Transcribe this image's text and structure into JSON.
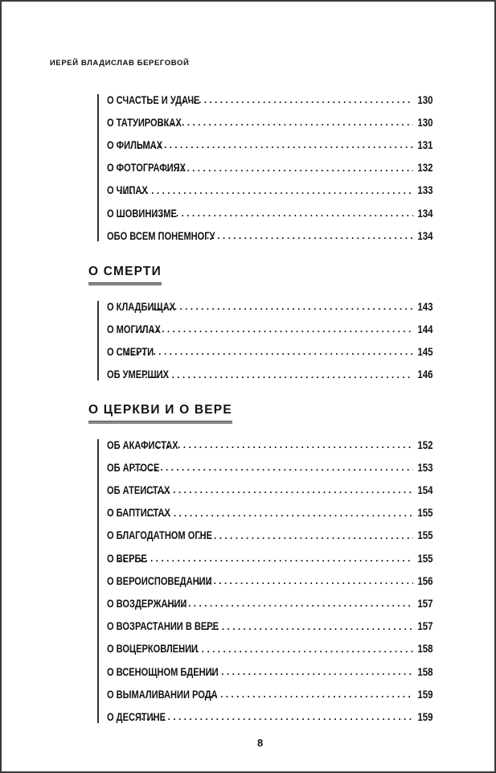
{
  "running_head": "ИЕРЕЙ ВЛАДИСЛАВ БЕРЕГОВОЙ",
  "sections": [
    {
      "title": "",
      "entries": [
        {
          "title": "О СЧАСТЬЕ И УДАЧЕ",
          "page": "130"
        },
        {
          "title": "О ТАТУИРОВКАХ",
          "page": "130"
        },
        {
          "title": "О ФИЛЬМАХ",
          "page": "131"
        },
        {
          "title": "О ФОТОГРАФИЯХ",
          "page": "132"
        },
        {
          "title": "О ЧИПАХ",
          "page": "133"
        },
        {
          "title": "О ШОВИНИЗМЕ",
          "page": "134"
        },
        {
          "title": "ОБО ВСЕМ ПОНЕМНОГУ",
          "page": "134"
        }
      ]
    },
    {
      "title": "О СМЕРТИ",
      "entries": [
        {
          "title": "О КЛАДБИЩАХ",
          "page": "143"
        },
        {
          "title": "О МОГИЛАХ",
          "page": "144"
        },
        {
          "title": "О СМЕРТИ",
          "page": "145"
        },
        {
          "title": "ОБ УМЕРШИХ",
          "page": "146"
        }
      ]
    },
    {
      "title": "О ЦЕРКВИ И О ВЕРЕ",
      "entries": [
        {
          "title": "ОБ АКАФИСТАХ",
          "page": "152"
        },
        {
          "title": "ОБ АРТОСЕ",
          "page": "153"
        },
        {
          "title": "ОБ АТЕИСТАХ",
          "page": "154"
        },
        {
          "title": "О БАПТИСТАХ",
          "page": "155"
        },
        {
          "title": "О БЛАГОДАТНОМ ОГНЕ",
          "page": "155"
        },
        {
          "title": "О ВЕРБЕ",
          "page": "155"
        },
        {
          "title": "О ВЕРОИСПОВЕДАНИИ",
          "page": "156"
        },
        {
          "title": "О ВОЗДЕРЖАНИИ",
          "page": "157"
        },
        {
          "title": "О ВОЗРАСТАНИИ В ВЕРЕ",
          "page": "157"
        },
        {
          "title": "О ВОЦЕРКОВЛЕНИИ",
          "page": "158"
        },
        {
          "title": "О ВСЕНОЩНОМ БДЕНИИ",
          "page": "158"
        },
        {
          "title": "О ВЫМАЛИВАНИИ РОДА",
          "page": "159"
        },
        {
          "title": "О ДЕСЯТИНЕ",
          "page": "159"
        }
      ]
    }
  ],
  "page_number": "8"
}
